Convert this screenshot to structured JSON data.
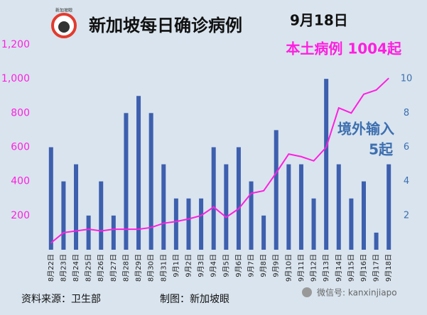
{
  "chart_data": {
    "type": "bar-line",
    "title": "新加坡每日确诊病例",
    "date": "9月18日",
    "logo_text": "新加坡眼",
    "annotations": [
      "本土病例 1004起",
      "境外输入",
      "5起"
    ],
    "footer_source": "资料来源：卫生部",
    "footer_author": "制图：新加坡眼",
    "watermark": "微信号: kanxinjiapo",
    "categories": [
      "8月22日",
      "8月23日",
      "8月24日",
      "8月25日",
      "8月26日",
      "8月27日",
      "8月28日",
      "8月29日",
      "8月30日",
      "8月31日",
      "9月1日",
      "9月2日",
      "9月3日",
      "9月4日",
      "9月5日",
      "9月6日",
      "9月7日",
      "9月8日",
      "9月9日",
      "9月10日",
      "9月11日",
      "9月12日",
      "9月13日",
      "9月14日",
      "9月15日",
      "9月16日",
      "9月17日",
      "9月18日"
    ],
    "series": [
      {
        "type": "bar",
        "axis": "y2",
        "color": "#3d5fae",
        "values": [
          6,
          4,
          5,
          2,
          4,
          2,
          8,
          9,
          8,
          5,
          3,
          3,
          3,
          6,
          5,
          6,
          4,
          2,
          7,
          5,
          5,
          3,
          10,
          5,
          3,
          4,
          1,
          5
        ]
      },
      {
        "type": "line",
        "axis": "y",
        "color": "#ff1fe0",
        "values": [
          40,
          100,
          110,
          120,
          110,
          120,
          120,
          120,
          130,
          155,
          165,
          180,
          200,
          250,
          190,
          240,
          330,
          345,
          450,
          560,
          545,
          520,
          600,
          830,
          800,
          910,
          935,
          1004
        ]
      }
    ],
    "ylim": [
      0,
      1200
    ],
    "yticks": [
      200,
      400,
      600,
      800,
      {
        "value": 1000,
        "label": "1,000"
      },
      {
        "value": 1200,
        "label": "1,200"
      }
    ],
    "y2lim": [
      0,
      12
    ],
    "y2ticks": [
      2,
      4,
      6,
      8,
      10
    ],
    "y_color": "#ff1fe0",
    "y2_color": "#3d6fb0",
    "grid": false
  }
}
